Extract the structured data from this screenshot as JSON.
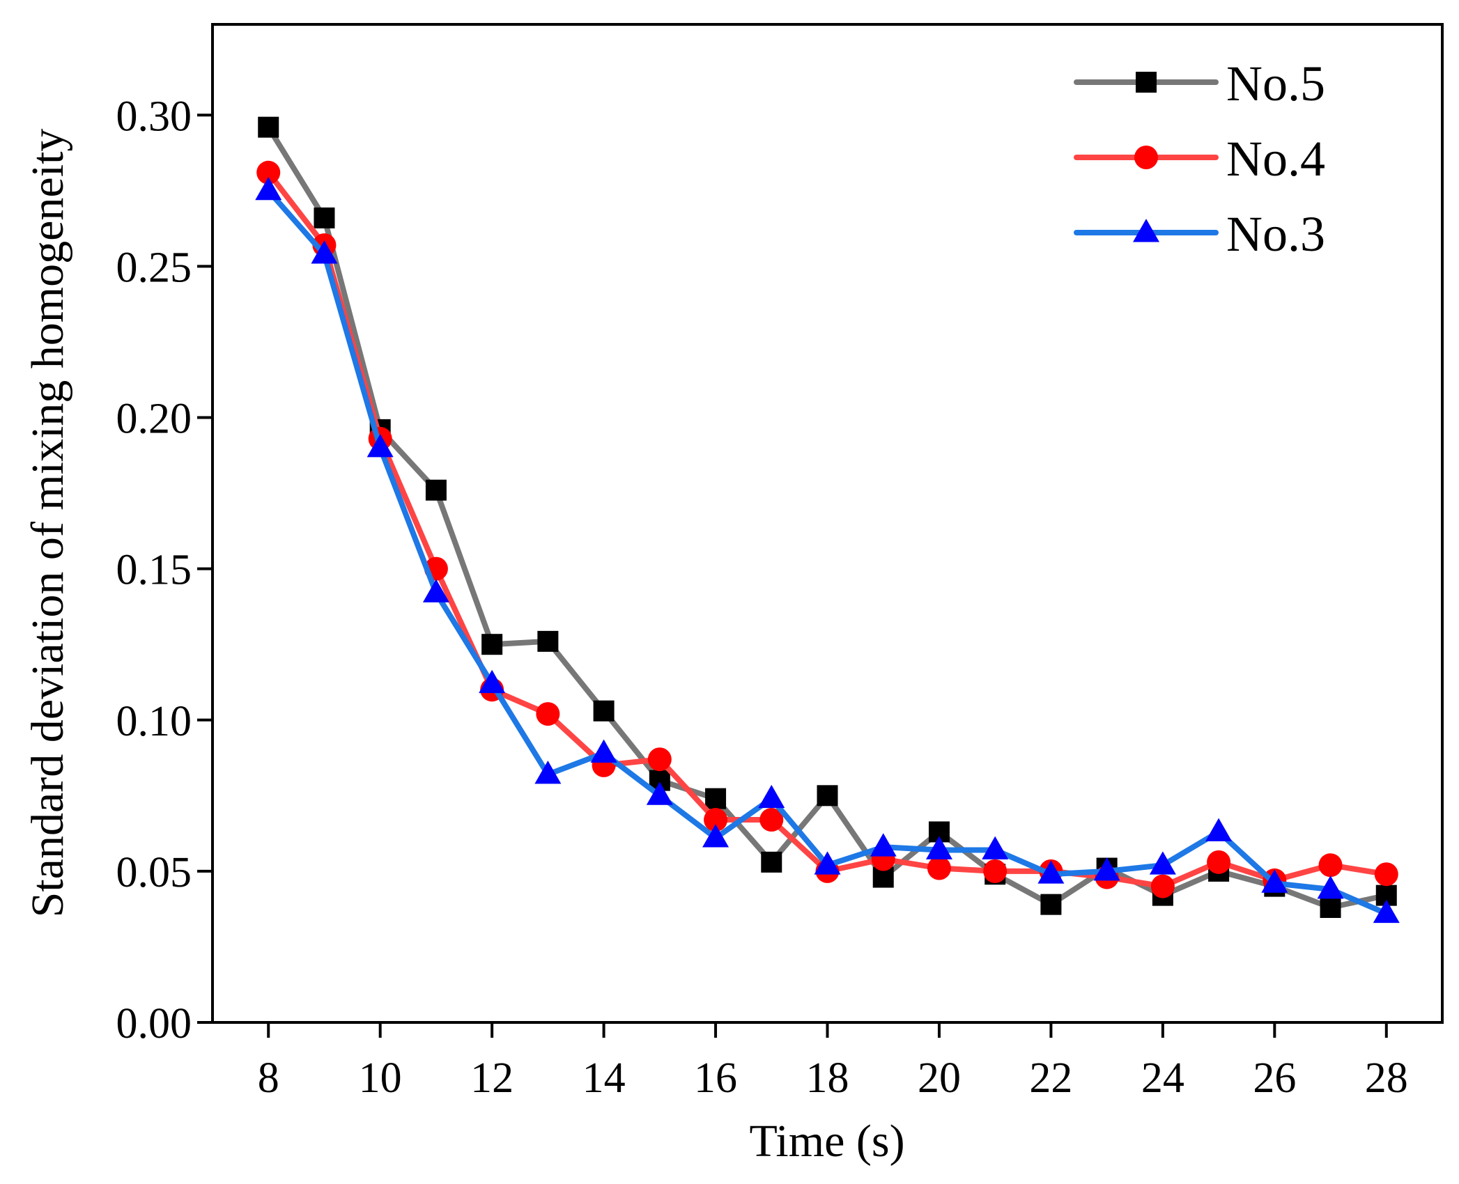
{
  "chart_data": {
    "type": "line",
    "title": "",
    "xlabel": "Time (s)",
    "ylabel": "Standard deviation of mixing homogeneity",
    "xlim": [
      7,
      29
    ],
    "ylim": [
      0,
      0.33
    ],
    "xticks": [
      8,
      10,
      12,
      14,
      16,
      18,
      20,
      22,
      24,
      26,
      28
    ],
    "xtick_labels": [
      "8",
      "10",
      "12",
      "14",
      "16",
      "18",
      "20",
      "22",
      "24",
      "26",
      "28"
    ],
    "yticks": [
      0,
      0.05,
      0.1,
      0.15,
      0.2,
      0.25,
      0.3
    ],
    "ytick_labels": [
      "0.00",
      "0.05",
      "0.10",
      "0.15",
      "0.20",
      "0.25",
      "0.30"
    ],
    "grid": false,
    "legend_position": "top-right",
    "x": [
      8,
      9,
      10,
      11,
      12,
      13,
      14,
      15,
      16,
      17,
      18,
      19,
      20,
      21,
      22,
      23,
      24,
      25,
      26,
      27,
      28
    ],
    "series": [
      {
        "name": "No.5",
        "marker": "square",
        "line_color": "#777777",
        "marker_color": "#000000",
        "values": [
          0.296,
          0.266,
          0.196,
          0.176,
          0.125,
          0.126,
          0.103,
          0.08,
          0.074,
          0.053,
          0.075,
          0.048,
          0.063,
          0.049,
          0.039,
          0.051,
          0.042,
          0.05,
          0.045,
          0.038,
          0.042
        ]
      },
      {
        "name": "No.4",
        "marker": "circle",
        "line_color": "#ff4444",
        "marker_color": "#ff0000",
        "values": [
          0.281,
          0.257,
          0.193,
          0.15,
          0.11,
          0.102,
          0.085,
          0.087,
          0.067,
          0.067,
          0.05,
          0.054,
          0.051,
          0.05,
          0.05,
          0.048,
          0.045,
          0.053,
          0.047,
          0.052,
          0.049
        ]
      },
      {
        "name": "No.3",
        "marker": "triangle",
        "line_color": "#1e78e6",
        "marker_color": "#0000ff",
        "values": [
          0.275,
          0.254,
          0.19,
          0.142,
          0.112,
          0.082,
          0.089,
          0.075,
          0.061,
          0.074,
          0.052,
          0.058,
          0.057,
          0.057,
          0.049,
          0.05,
          0.052,
          0.063,
          0.046,
          0.044,
          0.036
        ]
      }
    ]
  }
}
